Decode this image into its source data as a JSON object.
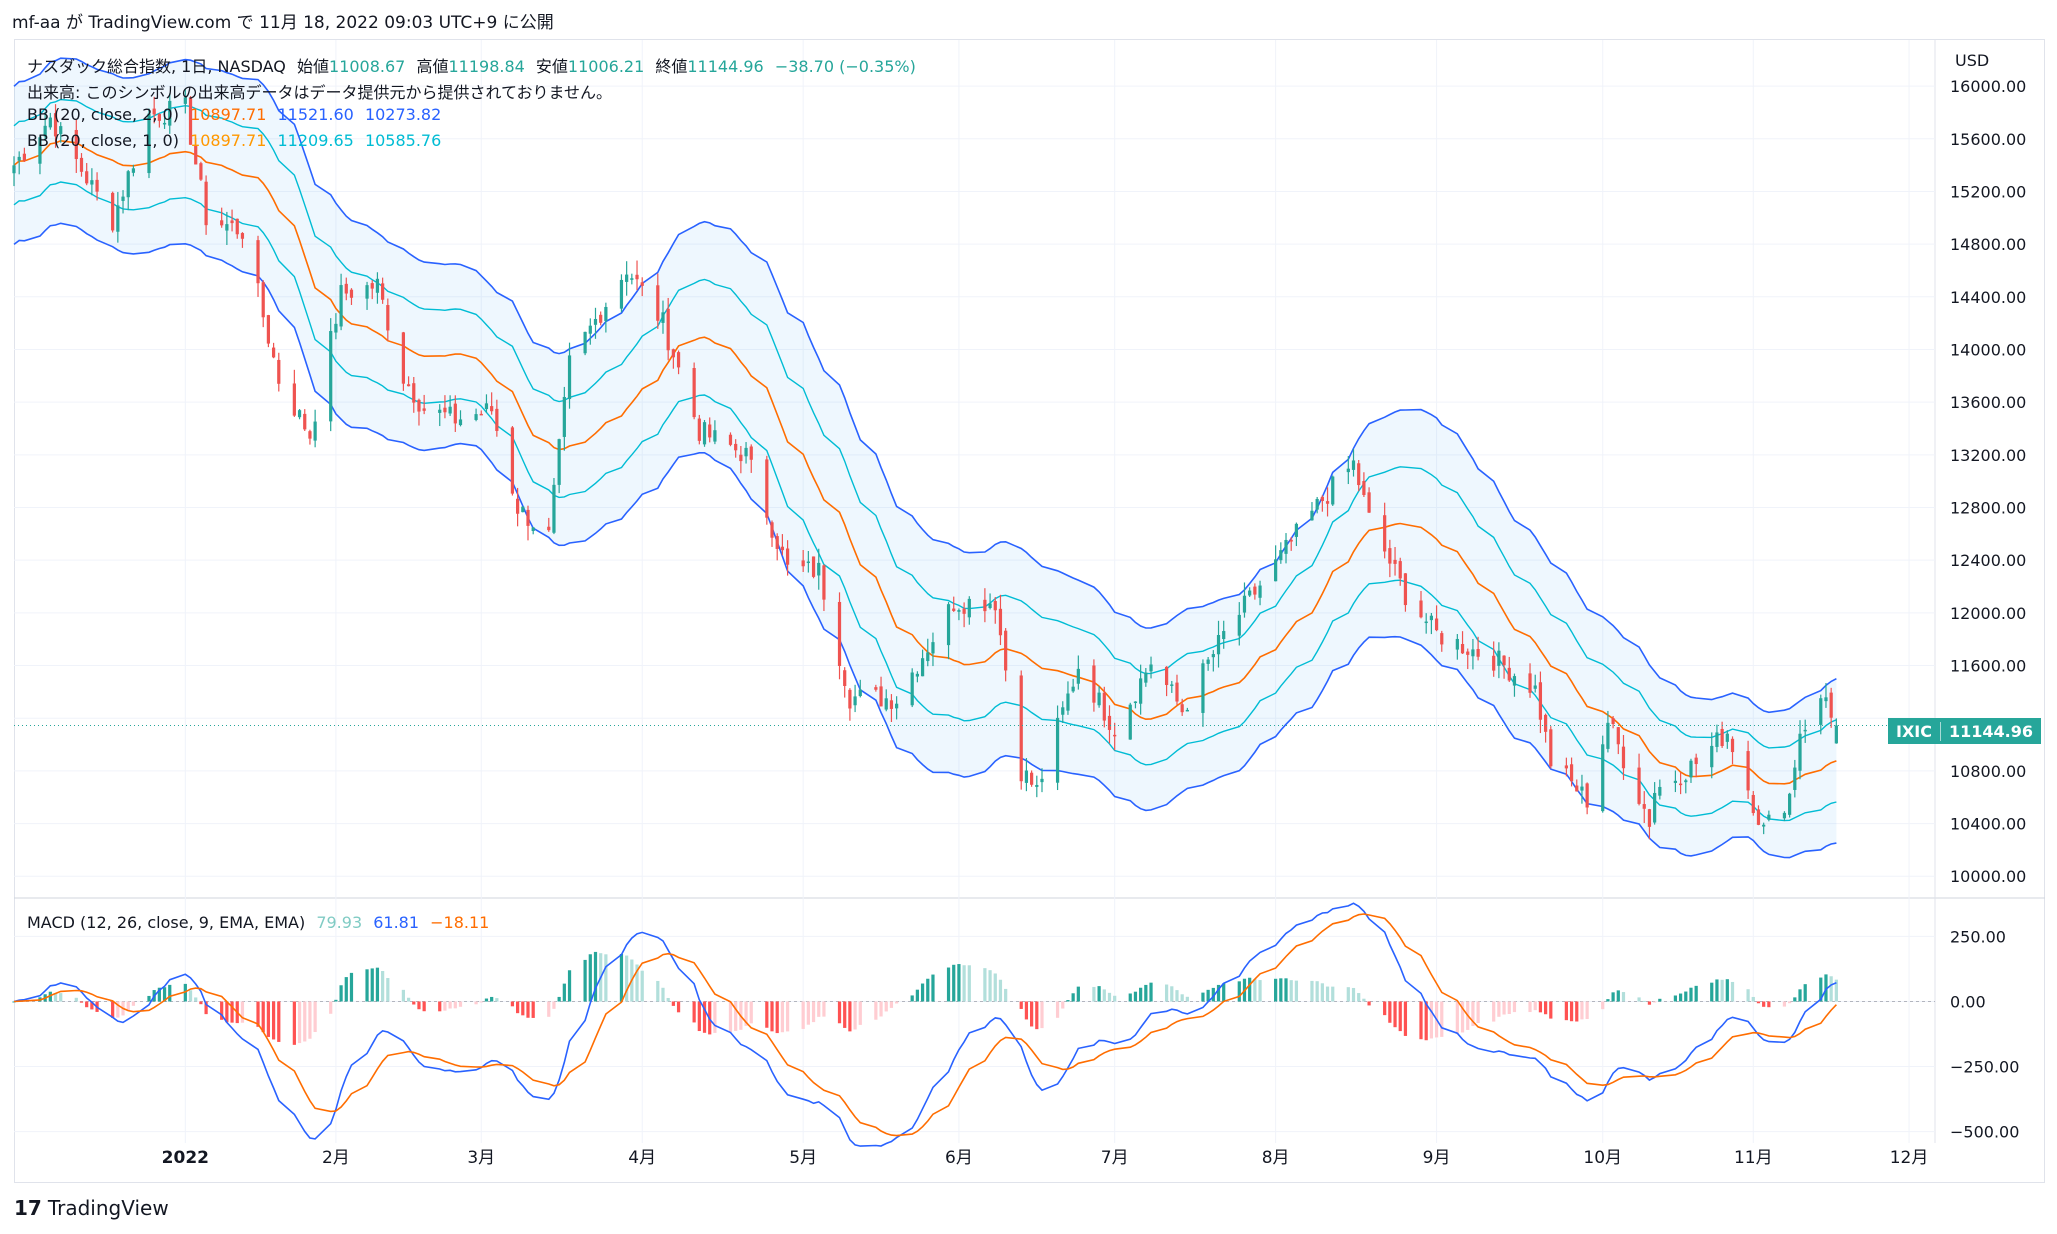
{
  "header": {
    "text": "mf-aa が TradingView.com で 11月 18, 2022 09:03 UTC+9 に公開"
  },
  "legend": {
    "title": "ナスダック総合指数, 1日, NASDAQ",
    "open_label": "始値",
    "open": "11008.67",
    "high_label": "高値",
    "high": "11198.84",
    "low_label": "安値",
    "low": "11006.21",
    "close_label": "終値",
    "close": "11144.96",
    "change": "−38.70 (−0.35%)",
    "volume_note": "出来高: このシンボルの出来高データはデータ提供元から提供されておりません。",
    "bb1_label": "BB (20, close, 2, 0)",
    "bb1_basis": "10897.71",
    "bb1_upper": "11521.60",
    "bb1_lower": "10273.82",
    "bb2_label": "BB (20, close, 1, 0)",
    "bb2_basis": "10897.71",
    "bb2_upper": "11209.65",
    "bb2_lower": "10585.76",
    "macd_label": "MACD (12, 26, close, 9, EMA, EMA)",
    "macd_hist": "79.93",
    "macd_line": "61.81",
    "macd_signal": "−18.11"
  },
  "price_badge": {
    "symbol": "IXIC",
    "value": "11144.96"
  },
  "footer": {
    "logo": "𝟭𝟳",
    "brand": "TradingView"
  },
  "colors": {
    "up": "#26a69a",
    "down": "#ef5350",
    "bb2": "#2962ff",
    "bb1": "#00bcd4",
    "basis": "#ff6d00",
    "macd": "#2962ff",
    "signal": "#ff6d00",
    "hist_up_strong": "#26a69a",
    "hist_up_weak": "#b2dfdb",
    "hist_down_strong": "#ff5252",
    "hist_down_weak": "#ffcdd2"
  },
  "chart_data": {
    "type": "candlestick",
    "price_axis": {
      "unit": "USD",
      "ticks": [
        10000,
        10400,
        10800,
        11200,
        11600,
        12000,
        12400,
        12800,
        13200,
        13600,
        14000,
        14400,
        14800,
        15200,
        15600,
        16000
      ],
      "labels": [
        "10000.00",
        "10400.00",
        "10800.00",
        "11600.00",
        "12000.00",
        "12400.00",
        "12800.00",
        "13200.00",
        "13600.00",
        "14000.00",
        "14400.00",
        "14800.00",
        "15200.00",
        "15600.00",
        "16000.00"
      ],
      "range": [
        9850,
        16350
      ]
    },
    "macd_axis": {
      "ticks": [
        250,
        0,
        -250,
        -500
      ],
      "labels": [
        "250.00",
        "0.00",
        "−250.00",
        "−500.00"
      ],
      "range": [
        -540,
        390
      ]
    },
    "time_axis": {
      "labels": [
        "2022",
        "2月",
        "3月",
        "4月",
        "5月",
        "6月",
        "7月",
        "8月",
        "9月",
        "10月",
        "11月",
        "12月"
      ],
      "label_dates": [
        "2022-01-03",
        "2022-02-01",
        "2022-03-01",
        "2022-04-01",
        "2022-05-02",
        "2022-06-01",
        "2022-07-01",
        "2022-08-01",
        "2022-09-01",
        "2022-10-03",
        "2022-11-01",
        "2022-12-01"
      ],
      "range": [
        "2021-12-01",
        "2022-12-06"
      ]
    },
    "anchors": [
      [
        "2021-12-01",
        15400
      ],
      [
        "2021-12-08",
        15760
      ],
      [
        "2021-12-13",
        15430
      ],
      [
        "2021-12-17",
        15170
      ],
      [
        "2021-12-20",
        14980
      ],
      [
        "2021-12-27",
        15780
      ],
      [
        "2022-01-03",
        15830
      ],
      [
        "2022-01-07",
        15000
      ],
      [
        "2022-01-14",
        14900
      ],
      [
        "2022-01-21",
        13770
      ],
      [
        "2022-01-27",
        13350
      ],
      [
        "2022-02-02",
        14420
      ],
      [
        "2022-02-09",
        14490
      ],
      [
        "2022-02-14",
        13790
      ],
      [
        "2022-02-18",
        13550
      ],
      [
        "2022-02-24",
        13470
      ],
      [
        "2022-03-03",
        13540
      ],
      [
        "2022-03-08",
        12800
      ],
      [
        "2022-03-14",
        12580
      ],
      [
        "2022-03-18",
        13890
      ],
      [
        "2022-03-29",
        14620
      ],
      [
        "2022-04-05",
        14200
      ],
      [
        "2022-04-12",
        13380
      ],
      [
        "2022-04-21",
        13200
      ],
      [
        "2022-04-29",
        12330
      ],
      [
        "2022-05-05",
        12320
      ],
      [
        "2022-05-11",
        11360
      ],
      [
        "2022-05-20",
        11350
      ],
      [
        "2022-05-31",
        12080
      ],
      [
        "2022-06-08",
        12090
      ],
      [
        "2022-06-13",
        10810
      ],
      [
        "2022-06-16",
        10650
      ],
      [
        "2022-06-24",
        11600
      ],
      [
        "2022-07-01",
        11120
      ],
      [
        "2022-07-08",
        11630
      ],
      [
        "2022-07-14",
        11260
      ],
      [
        "2022-07-22",
        11830
      ],
      [
        "2022-08-01",
        12370
      ],
      [
        "2022-08-10",
        12860
      ],
      [
        "2022-08-16",
        13130
      ],
      [
        "2022-08-19",
        12710
      ],
      [
        "2022-08-26",
        12140
      ],
      [
        "2022-09-01",
        11840
      ],
      [
        "2022-09-13",
        11630
      ],
      [
        "2022-09-20",
        11420
      ],
      [
        "2022-09-23",
        10870
      ],
      [
        "2022-09-30",
        10580
      ],
      [
        "2022-10-04",
        11180
      ],
      [
        "2022-10-12",
        10420
      ],
      [
        "2022-10-13",
        10650
      ],
      [
        "2022-10-21",
        10860
      ],
      [
        "2022-10-27",
        11100
      ],
      [
        "2022-11-03",
        10350
      ],
      [
        "2022-11-08",
        10620
      ],
      [
        "2022-11-10",
        11110
      ],
      [
        "2022-11-15",
        11360
      ],
      [
        "2022-11-17",
        11144.96
      ]
    ],
    "bb_width_stdev_anchors": [
      [
        "2021-12-01",
        300
      ],
      [
        "2022-01-10",
        360
      ],
      [
        "2022-02-01",
        400
      ],
      [
        "2022-03-01",
        330
      ],
      [
        "2022-04-01",
        400
      ],
      [
        "2022-05-02",
        500
      ],
      [
        "2022-06-01",
        430
      ],
      [
        "2022-07-01",
        350
      ],
      [
        "2022-08-01",
        330
      ],
      [
        "2022-09-01",
        460
      ],
      [
        "2022-10-03",
        360
      ],
      [
        "2022-11-01",
        260
      ],
      [
        "2022-11-17",
        312
      ]
    ],
    "last_values": {
      "open": 11008.67,
      "high": 11198.84,
      "low": 11006.21,
      "close": 11144.96,
      "bb_basis": 10897.71,
      "bb2_upper": 11521.6,
      "bb2_lower": 10273.82,
      "bb1_upper": 11209.65,
      "bb1_lower": 10585.76,
      "macd": 61.81,
      "signal": -18.11,
      "hist": 79.93
    },
    "series": [
      {
        "name": "BB (20, close, 2, 0)"
      },
      {
        "name": "BB (20, close, 1, 0)"
      },
      {
        "name": "MACD (12, 26, close, 9, EMA, EMA)"
      }
    ],
    "grid": true
  }
}
